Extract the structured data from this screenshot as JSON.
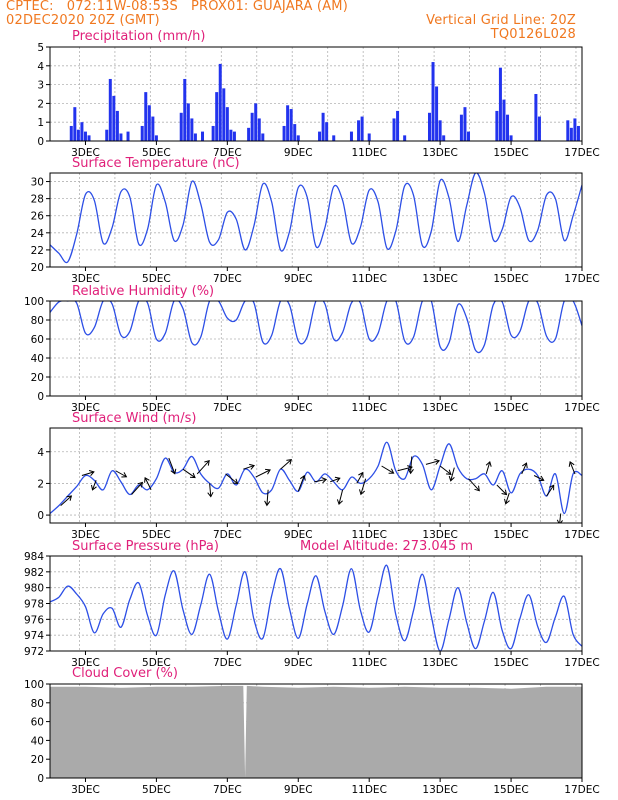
{
  "header": {
    "left1": "CPTEC:   072:11W-08:53S   PROX01: GUAJARA (AM)",
    "left2": "02DEC2020 20Z (GMT)",
    "right1": "Vertical Grid Line: 20Z",
    "right2": "TQ0126L028"
  },
  "colors": {
    "header": "#f07820",
    "title": "#e0207a",
    "line": "#2d4fe6",
    "bar": "#2233ee",
    "cloud": "#aaaaaa",
    "grid": "#b4b4b4"
  },
  "x_ticks": [
    "3DEC",
    "5DEC",
    "7DEC",
    "9DEC",
    "11DEC",
    "13DEC",
    "15DEC",
    "17DEC"
  ],
  "panels": [
    {
      "title": "Precipitation (mm/h)",
      "yticks": [
        "0",
        "1",
        "2",
        "3",
        "4",
        "5"
      ]
    },
    {
      "title": "Surface Temperature (nC)",
      "yticks": [
        "20",
        "22",
        "24",
        "26",
        "28",
        "30"
      ]
    },
    {
      "title": "Relative Humidity (%)",
      "yticks": [
        "0",
        "20",
        "40",
        "60",
        "80",
        "100"
      ]
    },
    {
      "title": "Surface Wind (m/s)",
      "yticks": [
        "0",
        "2",
        "4"
      ]
    },
    {
      "title": "Surface Pressure (hPa)",
      "yticks": [
        "972",
        "974",
        "976",
        "978",
        "980",
        "982",
        "984"
      ],
      "extra": "Model Altitude: 273.045 m"
    },
    {
      "title": "Cloud Cover (%)",
      "yticks": [
        "0",
        "20",
        "40",
        "60",
        "80",
        "100"
      ]
    }
  ],
  "chart_data": [
    {
      "type": "bar",
      "title": "Precipitation (mm/h)",
      "ylabel": "mm/h",
      "ylim": [
        0,
        5
      ],
      "x": [
        "2.6",
        "2.7",
        "2.8",
        "2.9",
        "3.0",
        "3.1",
        "3.6",
        "3.7",
        "3.8",
        "3.9",
        "4.0",
        "4.2",
        "4.6",
        "4.7",
        "4.8",
        "4.9",
        "5.0",
        "5.7",
        "5.8",
        "5.9",
        "6.0",
        "6.1",
        "6.3",
        "6.6",
        "6.7",
        "6.8",
        "6.9",
        "7.0",
        "7.1",
        "7.2",
        "7.6",
        "7.7",
        "7.8",
        "7.9",
        "8.0",
        "8.6",
        "8.7",
        "8.8",
        "8.9",
        "9.0",
        "9.6",
        "9.7",
        "9.8",
        "10.0",
        "10.5",
        "10.7",
        "10.8",
        "11.0",
        "11.7",
        "11.8",
        "12.0",
        "12.7",
        "12.8",
        "12.9",
        "13.0",
        "13.1",
        "13.6",
        "13.7",
        "13.8",
        "14.6",
        "14.7",
        "14.8",
        "14.9",
        "15.0",
        "15.7",
        "15.8",
        "16.6",
        "16.7",
        "16.8",
        "16.9"
      ],
      "values": [
        0.8,
        1.8,
        0.6,
        1.0,
        0.5,
        0.3,
        0.6,
        3.3,
        2.4,
        1.6,
        0.4,
        0.5,
        0.8,
        2.6,
        1.9,
        1.3,
        0.3,
        1.5,
        3.3,
        2.0,
        1.2,
        0.4,
        0.5,
        0.8,
        2.6,
        4.1,
        2.8,
        1.8,
        0.6,
        0.5,
        0.7,
        1.5,
        2.0,
        1.2,
        0.4,
        0.8,
        1.9,
        1.7,
        0.9,
        0.3,
        0.5,
        1.5,
        1.0,
        0.3,
        0.5,
        1.1,
        1.3,
        0.4,
        1.2,
        1.6,
        0.3,
        1.5,
        4.2,
        2.9,
        1.1,
        0.3,
        1.4,
        1.8,
        0.5,
        1.6,
        3.9,
        2.2,
        1.4,
        0.3,
        2.5,
        1.3,
        1.1,
        0.7,
        1.2,
        0.8
      ]
    },
    {
      "type": "line",
      "title": "Surface Temperature (nC)",
      "ylabel": "nC",
      "ylim": [
        20,
        31
      ],
      "x": [
        2.0,
        2.25,
        2.5,
        2.75,
        3.0,
        3.25,
        3.5,
        3.75,
        4.0,
        4.25,
        4.5,
        4.75,
        5.0,
        5.25,
        5.5,
        5.75,
        6.0,
        6.25,
        6.5,
        6.75,
        7.0,
        7.25,
        7.5,
        7.75,
        8.0,
        8.25,
        8.5,
        8.75,
        9.0,
        9.25,
        9.5,
        9.75,
        10.0,
        10.25,
        10.5,
        10.75,
        11.0,
        11.25,
        11.5,
        11.75,
        12.0,
        12.25,
        12.5,
        12.75,
        13.0,
        13.25,
        13.5,
        13.75,
        14.0,
        14.25,
        14.5,
        14.75,
        15.0,
        15.25,
        15.5,
        15.75,
        16.0,
        16.25,
        16.5,
        16.75,
        17.0
      ],
      "series": [
        {
          "values": [
            22.6,
            21.6,
            20.6,
            23.8,
            28.5,
            27.8,
            22.8,
            24.6,
            28.8,
            28.2,
            22.7,
            24.4,
            29.6,
            27.6,
            23.1,
            24.9,
            30.0,
            27.4,
            22.9,
            23.2,
            26.4,
            25.6,
            22.0,
            24.8,
            29.7,
            27.6,
            22.0,
            24.1,
            29.3,
            28.2,
            22.4,
            24.6,
            29.4,
            27.8,
            22.8,
            24.6,
            29.0,
            27.6,
            22.2,
            24.2,
            29.5,
            28.4,
            22.5,
            24.2,
            30.1,
            28.1,
            23.0,
            27.2,
            31.0,
            28.6,
            23.2,
            24.4,
            28.2,
            27.0,
            23.1,
            24.3,
            28.4,
            28.0,
            23.1,
            26.0,
            29.6
          ]
        }
      ]
    },
    {
      "type": "line",
      "title": "Relative Humidity (%)",
      "ylabel": "%",
      "ylim": [
        0,
        100
      ],
      "x": [
        2.0,
        2.25,
        2.5,
        2.75,
        3.0,
        3.25,
        3.5,
        3.75,
        4.0,
        4.25,
        4.5,
        4.75,
        5.0,
        5.25,
        5.5,
        5.75,
        6.0,
        6.25,
        6.5,
        6.75,
        7.0,
        7.25,
        7.5,
        7.75,
        8.0,
        8.25,
        8.5,
        8.75,
        9.0,
        9.25,
        9.5,
        9.75,
        10.0,
        10.25,
        10.5,
        10.75,
        11.0,
        11.25,
        11.5,
        11.75,
        12.0,
        12.25,
        12.5,
        12.75,
        13.0,
        13.25,
        13.5,
        13.75,
        14.0,
        14.25,
        14.5,
        14.75,
        15.0,
        15.25,
        15.5,
        15.75,
        16.0,
        16.25,
        16.5,
        16.75,
        17.0
      ],
      "series": [
        {
          "values": [
            88,
            99,
            100,
            98,
            66,
            72,
            100,
            97,
            64,
            68,
            100,
            98,
            60,
            66,
            100,
            92,
            56,
            62,
            100,
            100,
            82,
            80,
            100,
            98,
            57,
            64,
            100,
            96,
            58,
            62,
            100,
            97,
            60,
            67,
            98,
            98,
            60,
            66,
            100,
            100,
            58,
            62,
            100,
            100,
            52,
            56,
            96,
            82,
            48,
            54,
            96,
            99,
            64,
            68,
            100,
            98,
            63,
            60,
            100,
            100,
            74
          ]
        }
      ]
    },
    {
      "type": "line",
      "title": "Surface Wind (m/s)",
      "ylabel": "m/s",
      "ylim": [
        -0.5,
        5.5
      ],
      "x": [
        2.0,
        2.25,
        2.5,
        2.75,
        3.0,
        3.25,
        3.5,
        3.75,
        4.0,
        4.25,
        4.5,
        4.75,
        5.0,
        5.25,
        5.5,
        5.75,
        6.0,
        6.25,
        6.5,
        6.75,
        7.0,
        7.25,
        7.5,
        7.75,
        8.0,
        8.25,
        8.5,
        8.75,
        9.0,
        9.25,
        9.5,
        9.75,
        10.0,
        10.25,
        10.5,
        10.75,
        11.0,
        11.25,
        11.5,
        11.75,
        12.0,
        12.25,
        12.5,
        12.75,
        13.0,
        13.25,
        13.5,
        13.75,
        14.0,
        14.25,
        14.5,
        14.75,
        15.0,
        15.25,
        15.5,
        15.75,
        16.0,
        16.25,
        16.5,
        16.75,
        17.0
      ],
      "series": [
        {
          "values": [
            0.1,
            0.6,
            1.2,
            1.8,
            2.5,
            2.2,
            1.6,
            2.8,
            2.1,
            1.3,
            1.9,
            1.6,
            2.3,
            3.6,
            2.7,
            2.9,
            3.7,
            2.6,
            2.0,
            1.7,
            2.6,
            1.9,
            2.9,
            2.4,
            1.4,
            1.6,
            2.9,
            2.2,
            1.5,
            2.7,
            2.1,
            2.6,
            2.1,
            1.6,
            2.4,
            2.0,
            2.3,
            3.1,
            4.6,
            2.8,
            2.3,
            3.7,
            3.2,
            1.6,
            3.1,
            4.5,
            3.0,
            2.3,
            2.3,
            2.6,
            1.9,
            2.8,
            1.4,
            2.6,
            2.9,
            2.5,
            1.2,
            2.6,
            0.1,
            2.6,
            2.5
          ]
        }
      ],
      "vectors": [
        {
          "x": 2.3,
          "u": 0.9,
          "v": 0.8
        },
        {
          "x": 2.9,
          "u": 1.0,
          "v": 0.3
        },
        {
          "x": 3.3,
          "u": -0.3,
          "v": -0.8
        },
        {
          "x": 3.85,
          "u": 0.9,
          "v": -0.5
        },
        {
          "x": 4.3,
          "u": 0.9,
          "v": 1.0
        },
        {
          "x": 4.85,
          "u": -0.5,
          "v": 1.0
        },
        {
          "x": 5.35,
          "u": 0.5,
          "v": -1.3
        },
        {
          "x": 5.75,
          "u": 1.0,
          "v": -0.7
        },
        {
          "x": 6.15,
          "u": 1.0,
          "v": 1.1
        },
        {
          "x": 6.5,
          "u": 0.1,
          "v": -1.1
        },
        {
          "x": 6.95,
          "u": 1.0,
          "v": -0.8
        },
        {
          "x": 7.45,
          "u": 0.9,
          "v": 0.3
        },
        {
          "x": 7.8,
          "u": 1.2,
          "v": 0.6
        },
        {
          "x": 8.15,
          "u": -0.1,
          "v": -1.3
        },
        {
          "x": 8.5,
          "u": 0.9,
          "v": 0.8
        },
        {
          "x": 9.0,
          "u": 0.5,
          "v": 1.3
        },
        {
          "x": 9.45,
          "u": 1.0,
          "v": 0.2
        },
        {
          "x": 9.9,
          "u": 0.8,
          "v": 0.3
        },
        {
          "x": 10.25,
          "u": -0.3,
          "v": -1.2
        },
        {
          "x": 10.65,
          "u": 0.5,
          "v": 0.9
        },
        {
          "x": 10.9,
          "u": -0.4,
          "v": -1.3
        },
        {
          "x": 11.35,
          "u": 1.0,
          "v": -0.6
        },
        {
          "x": 11.8,
          "u": 1.2,
          "v": 0.3
        },
        {
          "x": 12.2,
          "u": -0.1,
          "v": -1.4
        },
        {
          "x": 12.6,
          "u": 1.1,
          "v": 0.3
        },
        {
          "x": 13.0,
          "u": 0.9,
          "v": -0.7
        },
        {
          "x": 13.4,
          "u": -0.3,
          "v": -1.1
        },
        {
          "x": 13.8,
          "u": 0.9,
          "v": -1.0
        },
        {
          "x": 14.3,
          "u": 0.3,
          "v": 1.0
        },
        {
          "x": 14.6,
          "u": 0.8,
          "v": -0.8
        },
        {
          "x": 14.95,
          "u": -0.3,
          "v": -0.9
        },
        {
          "x": 15.3,
          "u": 0.4,
          "v": 0.9
        },
        {
          "x": 15.65,
          "u": 0.8,
          "v": -0.4
        },
        {
          "x": 16.0,
          "u": 0.6,
          "v": 0.9
        },
        {
          "x": 16.4,
          "u": -0.1,
          "v": -0.9
        },
        {
          "x": 16.8,
          "u": -0.4,
          "v": 1.0
        }
      ]
    },
    {
      "type": "line",
      "title": "Surface Pressure (hPa)",
      "ylabel": "hPa",
      "ylim": [
        972,
        984
      ],
      "x": [
        2.0,
        2.25,
        2.5,
        2.75,
        3.0,
        3.25,
        3.5,
        3.75,
        4.0,
        4.25,
        4.5,
        4.75,
        5.0,
        5.25,
        5.5,
        5.75,
        6.0,
        6.25,
        6.5,
        6.75,
        7.0,
        7.25,
        7.5,
        7.75,
        8.0,
        8.25,
        8.5,
        8.75,
        9.0,
        9.25,
        9.5,
        9.75,
        10.0,
        10.25,
        10.5,
        10.75,
        11.0,
        11.25,
        11.5,
        11.75,
        12.0,
        12.25,
        12.5,
        12.75,
        13.0,
        13.25,
        13.5,
        13.75,
        14.0,
        14.25,
        14.5,
        14.75,
        15.0,
        15.25,
        15.5,
        15.75,
        16.0,
        16.25,
        16.5,
        16.75,
        17.0
      ],
      "series": [
        {
          "values": [
            978.2,
            978.8,
            980.2,
            979.2,
            977.6,
            974.3,
            976.7,
            977.4,
            975.0,
            978.5,
            980.6,
            976.5,
            974.0,
            979.1,
            982.1,
            977.2,
            974.1,
            977.8,
            981.7,
            977.0,
            973.5,
            977.8,
            982.0,
            976.0,
            973.6,
            979.0,
            982.4,
            977.4,
            973.6,
            977.9,
            981.5,
            977.0,
            974.1,
            977.7,
            982.4,
            977.2,
            974.4,
            979.0,
            982.8,
            976.6,
            973.3,
            977.1,
            981.7,
            976.4,
            972.0,
            976.0,
            980.0,
            975.6,
            972.3,
            975.8,
            979.4,
            974.6,
            972.3,
            976.1,
            979.1,
            975.1,
            973.1,
            976.3,
            978.9,
            974.1,
            972.6
          ]
        }
      ]
    },
    {
      "type": "area",
      "title": "Cloud Cover (%)",
      "ylabel": "%",
      "ylim": [
        0,
        100
      ],
      "x": [
        2.0,
        3.0,
        4.0,
        5.0,
        6.0,
        7.0,
        7.45,
        7.5,
        7.55,
        8.0,
        9.0,
        10.0,
        11.0,
        12.0,
        13.0,
        14.0,
        15.0,
        16.0,
        17.0
      ],
      "series": [
        {
          "values": [
            97,
            97,
            96,
            97,
            97,
            98,
            98,
            0,
            98,
            97,
            96,
            97,
            96,
            97,
            96,
            96,
            95,
            97,
            97
          ]
        }
      ]
    }
  ]
}
